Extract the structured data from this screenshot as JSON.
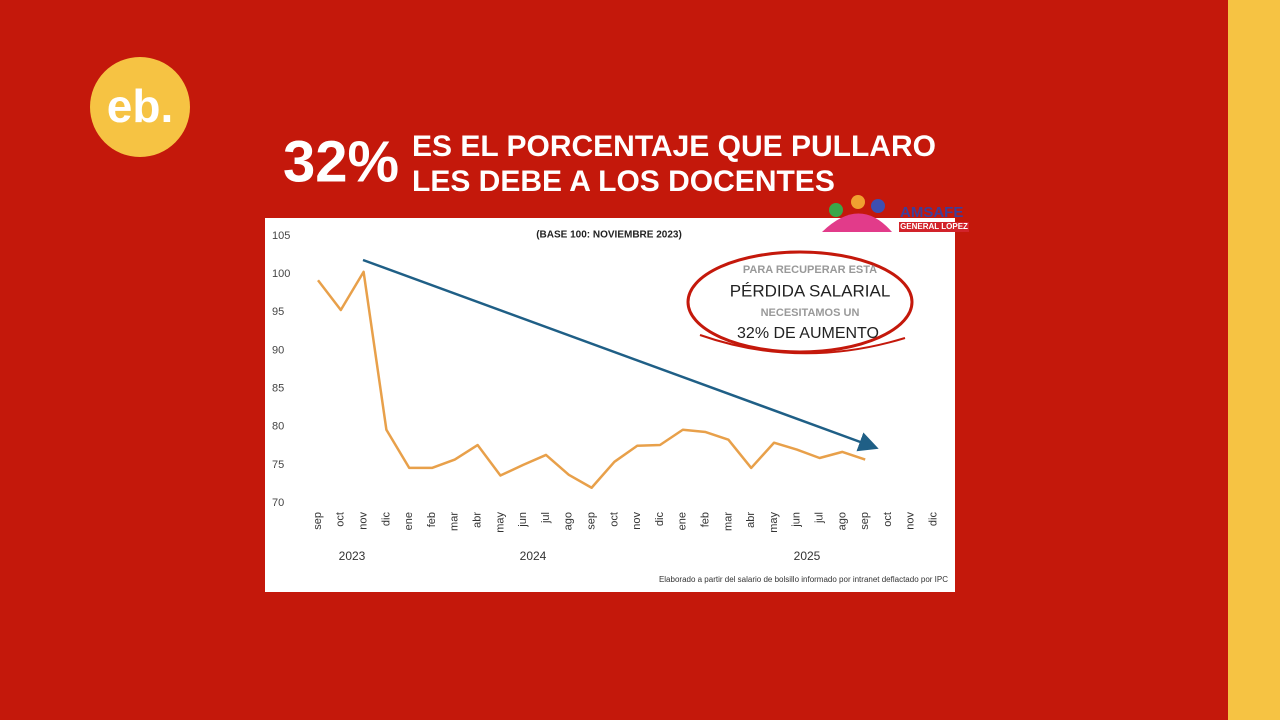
{
  "brand": "eb.",
  "headline": {
    "number": "32%",
    "line1": "ES EL PORCENTAJE QUE PULLARO",
    "line2": "LES DEBE A LOS DOCENTES"
  },
  "logo": {
    "name": "AMSAFE",
    "sub": "GENERAL LOPEZ"
  },
  "chart_data": {
    "type": "line",
    "subtitle": "(BASE 100: NOVIEMBRE 2023)",
    "categories": [
      "sep",
      "oct",
      "nov",
      "dic",
      "ene",
      "feb",
      "mar",
      "abr",
      "may",
      "jun",
      "jul",
      "ago",
      "sep",
      "oct",
      "nov",
      "dic",
      "ene",
      "feb",
      "mar",
      "abr",
      "may",
      "jun",
      "jul",
      "ago",
      "sep",
      "oct",
      "nov",
      "dic"
    ],
    "years": [
      "2023",
      "2024",
      "2025"
    ],
    "values": [
      99.2,
      95.3,
      100.3,
      79.6,
      74.6,
      74.6,
      75.7,
      77.6,
      73.6,
      75.0,
      76.3,
      73.7,
      72.0,
      75.4,
      77.5,
      77.6,
      79.6,
      79.3,
      78.3,
      74.6,
      77.9,
      77.0,
      75.9,
      76.7,
      75.7,
      null,
      null,
      null
    ],
    "color": "#e8a04a",
    "ylim": [
      70,
      105
    ],
    "yticks": [
      70,
      75,
      80,
      85,
      90,
      95,
      100,
      105
    ],
    "annotation": [
      "PARA RECUPERAR ESTA",
      "PÉRDIDA SALARIAL",
      "NECESITAMOS UN",
      "32% DE AUMENTO"
    ],
    "source": "Elaborado a partir del salario de bolsillo informado por intranet deflactado por IPC"
  }
}
